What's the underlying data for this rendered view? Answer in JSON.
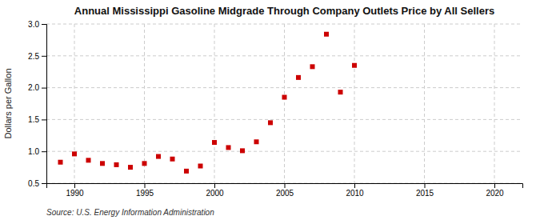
{
  "chart_data": {
    "type": "scatter",
    "title": "Annual Mississippi Gasoline Midgrade Through Company Outlets Price by All Sellers",
    "ylabel": "Dollars per Gallon",
    "source": "Source: U.S. Energy Information Administration",
    "color": "#cc0000",
    "marker": "square",
    "grid": true,
    "xlim": [
      1988,
      2022
    ],
    "ylim": [
      0.5,
      3.0
    ],
    "xticks": [
      1990,
      1995,
      2000,
      2005,
      2010,
      2015,
      2020
    ],
    "yticks": [
      0.5,
      {
        "value": 1.0,
        "label": "1.0"
      },
      1.5,
      {
        "value": 2.0,
        "label": "2.0"
      },
      2.5,
      {
        "value": 3.0,
        "label": "3.0"
      }
    ],
    "x": [
      1989,
      1990,
      1991,
      1992,
      1993,
      1994,
      1995,
      1996,
      1997,
      1998,
      1999,
      2000,
      2001,
      2002,
      2003,
      2004,
      2005,
      2006,
      2007,
      2008,
      2009,
      2010
    ],
    "values": [
      0.83,
      0.96,
      0.86,
      0.81,
      0.79,
      0.75,
      0.81,
      0.92,
      0.88,
      0.69,
      0.77,
      1.14,
      1.06,
      1.01,
      1.15,
      1.45,
      1.85,
      2.16,
      2.33,
      2.84,
      1.93,
      2.35
    ]
  }
}
